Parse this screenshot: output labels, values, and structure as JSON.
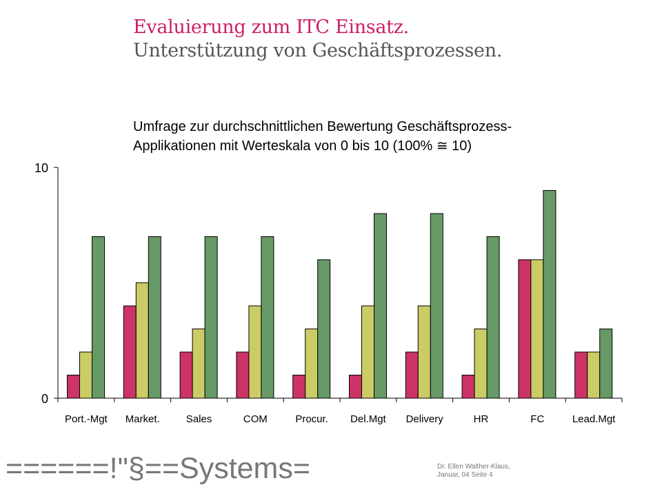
{
  "header": {
    "title": "Evaluierung zum ITC Einsatz.",
    "subtitle": "Unterstützung von Geschäftsprozessen."
  },
  "description": {
    "line1": "Umfrage zur durchschnittlichen Bewertung Geschäftsprozess-",
    "line2": "Applikationen mit Werteskala von 0 bis 10 (100% ≅ 10)"
  },
  "chart_data": {
    "type": "bar",
    "categories": [
      "Port.-Mgt",
      "Market.",
      "Sales",
      "COM",
      "Procur.",
      "Del.Mgt",
      "Delivery",
      "HR",
      "FC",
      "Lead.Mgt"
    ],
    "series": [
      {
        "color": "#cc3366",
        "values": [
          1,
          4,
          2,
          2,
          1,
          1,
          2,
          1,
          6,
          2
        ]
      },
      {
        "color": "#cccc66",
        "values": [
          2,
          5,
          3,
          4,
          3,
          4,
          4,
          3,
          6,
          2
        ]
      },
      {
        "color": "#669966",
        "values": [
          7,
          7,
          7,
          7,
          6,
          8,
          8,
          7,
          9,
          3
        ]
      }
    ],
    "ylim": [
      0,
      10
    ],
    "yticks": [
      "0",
      "10"
    ],
    "grid": false,
    "legend": "none"
  },
  "footer": {
    "brand": "======!\"§==Systems=",
    "author": "Dr. Ellen Walther-Klaus,",
    "date_page": "Januar, 04 Seite 4"
  }
}
